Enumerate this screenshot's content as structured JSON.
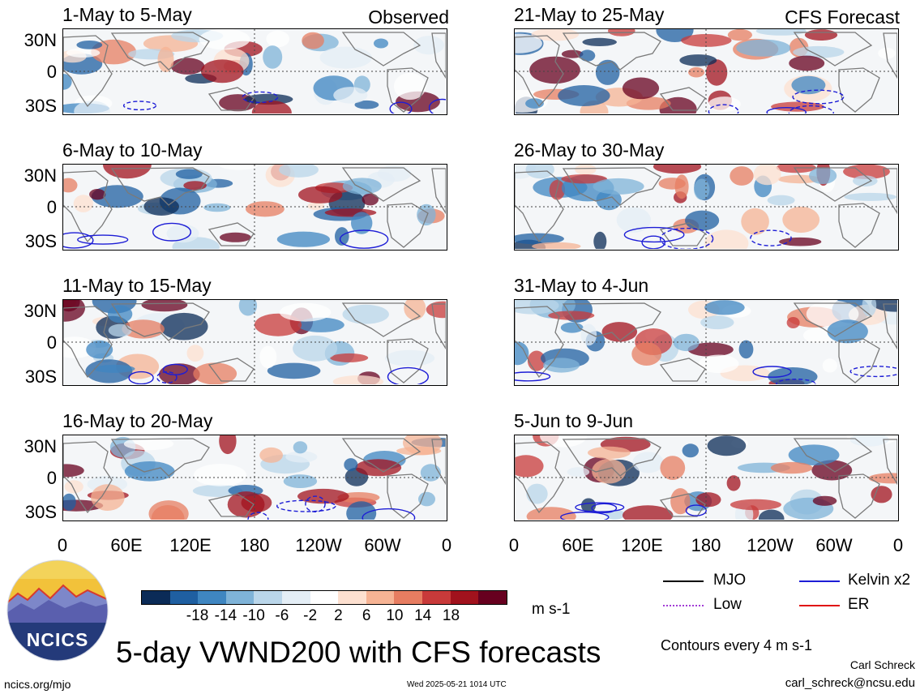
{
  "panels_left": [
    {
      "title": "1-May to 5-May",
      "tag": "Observed"
    },
    {
      "title": "6-May to 10-May",
      "tag": ""
    },
    {
      "title": "11-May to 15-May",
      "tag": ""
    },
    {
      "title": "16-May to 20-May",
      "tag": ""
    }
  ],
  "panels_right": [
    {
      "title": "21-May to 25-May",
      "tag": "CFS Forecast"
    },
    {
      "title": "26-May to 30-May",
      "tag": ""
    },
    {
      "title": "31-May to 4-Jun",
      "tag": ""
    },
    {
      "title": "5-Jun to 9-Jun",
      "tag": ""
    }
  ],
  "lat_labels": [
    "30N",
    "0",
    "30S"
  ],
  "lon_labels": [
    "0",
    "60E",
    "120E",
    "180",
    "120W",
    "60W",
    "0"
  ],
  "colorbar": {
    "colors": [
      "#0b2b57",
      "#1f5fa1",
      "#3f86c1",
      "#7fb3d8",
      "#bad6ea",
      "#e4eef6",
      "#ffffff",
      "#fde0d0",
      "#f6b394",
      "#e77d61",
      "#c83a3a",
      "#a1121d",
      "#67001f"
    ],
    "labels": [
      "-18",
      "-14",
      "-10",
      "-6",
      "-2",
      "2",
      "6",
      "10",
      "14",
      "18"
    ],
    "units": "m s-1"
  },
  "legend": {
    "items": [
      {
        "label": "MJO",
        "color": "#000000",
        "style": "solid"
      },
      {
        "label": "Kelvin x2",
        "color": "#1d1dd6",
        "style": "solid"
      },
      {
        "label": "Low",
        "color": "#a23bd6",
        "style": "dotted"
      },
      {
        "label": "ER",
        "color": "#e01010",
        "style": "solid"
      }
    ],
    "contour_note": "Contours every 4 m s-1"
  },
  "logo_text": "NCICS",
  "main_title": "5-day VWND200 with CFS forecasts",
  "author": "Carl Schreck",
  "email": "carl_schreck@ncsu.edu",
  "website": "ncics.org/mjo",
  "timestamp": "Wed 2025-05-21 1014 UTC"
}
